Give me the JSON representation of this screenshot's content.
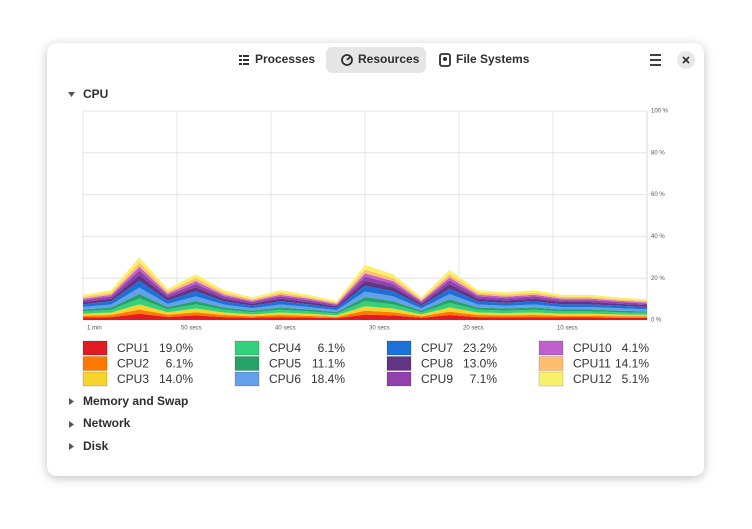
{
  "tabs": [
    "Processes",
    "Resources",
    "File Systems"
  ],
  "sections": [
    "CPU",
    "Memory and Swap",
    "Network",
    "Disk"
  ],
  "chart_data": {
    "type": "area",
    "stacked": true,
    "x": [
      60,
      57,
      54,
      51,
      48,
      45,
      42,
      39,
      36,
      33,
      30,
      27,
      24,
      21,
      18,
      15,
      12,
      9,
      6,
      3,
      0
    ],
    "xlim": [
      60,
      0
    ],
    "xticks": [
      {
        "value": 60,
        "label": "1 min"
      },
      {
        "value": 50,
        "label": "50 secs"
      },
      {
        "value": 40,
        "label": "40 secs"
      },
      {
        "value": 30,
        "label": "30 secs"
      },
      {
        "value": 20,
        "label": "20 secs"
      },
      {
        "value": 10,
        "label": "10 secs"
      }
    ],
    "ylim": [
      0,
      100
    ],
    "yticks": [
      {
        "value": 0,
        "label": "0 %"
      },
      {
        "value": 20,
        "label": "20 %"
      },
      {
        "value": 40,
        "label": "40 %"
      },
      {
        "value": 60,
        "label": "60 %"
      },
      {
        "value": 80,
        "label": "80 %"
      },
      {
        "value": 100,
        "label": "100 %"
      }
    ],
    "grid": true,
    "series": [
      {
        "name": "CPU1",
        "value_label": "19.0%",
        "color": "#e01b24",
        "values": [
          1.2,
          1.4,
          3,
          1.5,
          2.2,
          1.4,
          1.1,
          1.4,
          1.2,
          0.9,
          2.6,
          2.2,
          1.1,
          2.4,
          1.4,
          1.3,
          1.4,
          1.2,
          1.2,
          1.1,
          1
        ]
      },
      {
        "name": "CPU2",
        "value_label": "6.1%",
        "color": "#ff7800",
        "values": [
          0.8,
          1,
          2,
          1,
          1.5,
          1,
          0.7,
          1,
          0.8,
          0.6,
          1.8,
          1.5,
          0.7,
          1.6,
          1,
          0.9,
          1,
          0.8,
          0.8,
          0.7,
          0.7
        ]
      },
      {
        "name": "CPU3",
        "value_label": "14.0%",
        "color": "#f6d32d",
        "values": [
          1,
          1.2,
          2.5,
          1.2,
          1.8,
          1.2,
          0.9,
          1.2,
          1,
          0.8,
          2.2,
          1.8,
          0.9,
          2,
          1.2,
          1.1,
          1.2,
          1,
          1,
          0.9,
          0.8
        ]
      },
      {
        "name": "CPU4",
        "value_label": "6.1%",
        "color": "#33d17a",
        "values": [
          1.1,
          1.3,
          2.8,
          1.4,
          2,
          1.3,
          1,
          1.3,
          1.1,
          0.8,
          2.4,
          2,
          1,
          2.2,
          1.3,
          1.2,
          1.3,
          1.1,
          1.1,
          1,
          0.9
        ]
      },
      {
        "name": "CPU5",
        "value_label": "11.1%",
        "color": "#26a269",
        "values": [
          0.9,
          1.1,
          2.2,
          1.1,
          1.6,
          1.1,
          0.8,
          1.1,
          0.9,
          0.7,
          2,
          1.6,
          0.8,
          1.8,
          1.1,
          1,
          1.1,
          0.9,
          0.9,
          0.8,
          0.7
        ]
      },
      {
        "name": "CPU6",
        "value_label": "18.4%",
        "color": "#62a0ea",
        "values": [
          1.2,
          1.4,
          3,
          1.5,
          2.2,
          1.4,
          1.1,
          1.4,
          1.2,
          0.9,
          2.6,
          2.2,
          1.1,
          2.4,
          1.4,
          1.3,
          1.4,
          1.2,
          1.2,
          1.1,
          1
        ]
      },
      {
        "name": "CPU7",
        "value_label": "23.2%",
        "color": "#1c71d8",
        "values": [
          1.3,
          1.5,
          3.2,
          1.6,
          2.4,
          1.5,
          1.2,
          1.5,
          1.3,
          1,
          2.8,
          2.4,
          1.2,
          2.6,
          1.5,
          1.4,
          1.5,
          1.3,
          1.3,
          1.2,
          1.1
        ]
      },
      {
        "name": "CPU8",
        "value_label": "13.0%",
        "color": "#613583",
        "values": [
          1.1,
          1.3,
          2.8,
          1.4,
          2,
          1.3,
          1,
          1.3,
          1.1,
          0.8,
          2.4,
          2,
          1,
          2.2,
          1.3,
          1.2,
          1.3,
          1.1,
          1.1,
          1,
          0.9
        ]
      },
      {
        "name": "CPU9",
        "value_label": "7.1%",
        "color": "#9141ac",
        "values": [
          0.9,
          1.1,
          2.2,
          1.1,
          1.6,
          1.1,
          0.8,
          1.1,
          0.9,
          0.7,
          2,
          1.6,
          0.8,
          1.8,
          1.1,
          1,
          1.1,
          0.9,
          0.9,
          0.8,
          0.7
        ]
      },
      {
        "name": "CPU10",
        "value_label": "4.1%",
        "color": "#c061cb",
        "values": [
          0.7,
          0.8,
          1.8,
          0.9,
          1.3,
          0.8,
          0.6,
          0.8,
          0.7,
          0.5,
          1.5,
          1.3,
          0.6,
          1.4,
          0.8,
          0.8,
          0.8,
          0.7,
          0.7,
          0.6,
          0.6
        ]
      },
      {
        "name": "CPU11",
        "value_label": "14.1%",
        "color": "#ffbe6f",
        "values": [
          0.8,
          1,
          2,
          1,
          1.5,
          1,
          0.7,
          1,
          0.8,
          0.6,
          1.8,
          1.5,
          0.7,
          1.6,
          1,
          0.9,
          1,
          0.8,
          0.8,
          0.7,
          0.7
        ]
      },
      {
        "name": "CPU12",
        "value_label": "5.1%",
        "color": "#f9f06b",
        "values": [
          1,
          1.2,
          2.5,
          1.2,
          1.8,
          1.2,
          0.9,
          1.2,
          1,
          0.8,
          2.2,
          1.8,
          0.9,
          2,
          1.2,
          1.1,
          1.2,
          1,
          1,
          0.9,
          0.8
        ]
      }
    ]
  }
}
